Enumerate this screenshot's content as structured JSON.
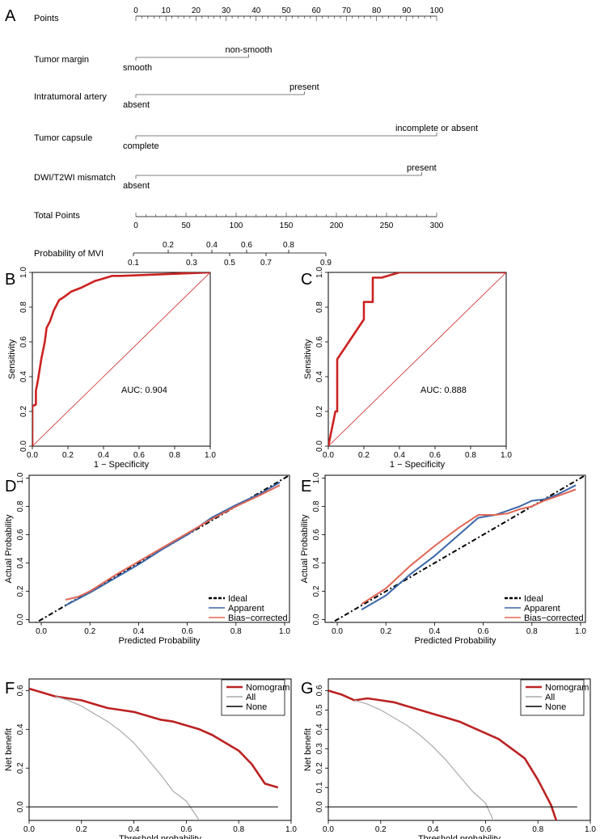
{
  "panels": {
    "A": "A",
    "B": "B",
    "C": "C",
    "D": "D",
    "E": "E",
    "F": "F",
    "G": "G"
  },
  "nomogram": {
    "rows": [
      {
        "label": "Points",
        "type": "scale",
        "min": 0,
        "max": 100,
        "labels": [
          0,
          10,
          20,
          30,
          40,
          50,
          60,
          70,
          80,
          90,
          100
        ]
      },
      {
        "label": "Tumor margin",
        "low": "smooth",
        "high": "non-smooth",
        "points": 37.5
      },
      {
        "label": "Intratumoral artery",
        "low": "absent",
        "high": "present",
        "points": 56
      },
      {
        "label": "Tumor capsule",
        "low": "complete",
        "high": "incomplete or absent",
        "points": 100
      },
      {
        "label": "DWI/T2WI mismatch",
        "low": "absent",
        "high": "present",
        "points": 95
      },
      {
        "label": "Total Points",
        "type": "scale",
        "min": 0,
        "max": 300,
        "labels": [
          0,
          50,
          100,
          150,
          200,
          250,
          300
        ]
      },
      {
        "label": "Probability of MVI",
        "type": "prob",
        "above": [
          "0.2",
          "0.4",
          "0.6",
          "0.8"
        ],
        "below": [
          "0.1",
          "0.3",
          "0.5",
          "0.7",
          "0.9"
        ]
      }
    ]
  },
  "chart_data": [
    {
      "panel": "B",
      "type": "line",
      "title": "",
      "xlabel": "1 − Specificity",
      "ylabel": "Sensitivity",
      "xlim": [
        0,
        1
      ],
      "ylim": [
        0,
        1
      ],
      "xticks": [
        "0.0",
        "0.2",
        "0.4",
        "0.6",
        "0.8",
        "1.0"
      ],
      "yticks": [
        "0.0",
        "0.2",
        "0.4",
        "0.6",
        "0.8",
        "1.0"
      ],
      "annotation": "AUC: 0.904",
      "series": [
        {
          "name": "ROC",
          "color": "#cc2222",
          "x": [
            0,
            0,
            0.02,
            0.02,
            0.03,
            0.05,
            0.07,
            0.08,
            0.1,
            0.12,
            0.15,
            0.18,
            0.22,
            0.27,
            0.35,
            0.45,
            0.5,
            1.0
          ],
          "y": [
            0,
            0.23,
            0.24,
            0.32,
            0.37,
            0.5,
            0.6,
            0.68,
            0.72,
            0.78,
            0.84,
            0.86,
            0.89,
            0.91,
            0.95,
            0.98,
            0.98,
            1.0
          ]
        },
        {
          "name": "diagonal",
          "color": "#cc2222",
          "x": [
            0,
            1
          ],
          "y": [
            0,
            1
          ]
        }
      ]
    },
    {
      "panel": "C",
      "type": "line",
      "title": "",
      "xlabel": "1 − Specificity",
      "ylabel": "Sensitivity",
      "xlim": [
        0,
        1
      ],
      "ylim": [
        0,
        1
      ],
      "xticks": [
        "0.0",
        "0.2",
        "0.4",
        "0.6",
        "0.8",
        "1.0"
      ],
      "yticks": [
        "0.0",
        "0.2",
        "0.4",
        "0.6",
        "0.8",
        "1.0"
      ],
      "annotation": "AUC: 0.888",
      "series": [
        {
          "name": "ROC",
          "color": "#cc2222",
          "x": [
            0,
            0.04,
            0.05,
            0.05,
            0.2,
            0.2,
            0.25,
            0.25,
            0.3,
            0.4,
            1.0
          ],
          "y": [
            0,
            0.2,
            0.2,
            0.5,
            0.73,
            0.83,
            0.83,
            0.97,
            0.97,
            1.0,
            1.0
          ]
        },
        {
          "name": "diagonal",
          "color": "#cc2222",
          "x": [
            0,
            1
          ],
          "y": [
            0,
            1
          ]
        }
      ]
    },
    {
      "panel": "D",
      "type": "line",
      "title": "",
      "xlabel": "Predicted Probability",
      "ylabel": "Actual Probability",
      "xlim": [
        -0.05,
        1.02
      ],
      "ylim": [
        -0.02,
        1.02
      ],
      "xticks": [
        "0.0",
        "0.2",
        "0.4",
        "0.6",
        "0.8",
        "1.0"
      ],
      "yticks": [
        "0.0",
        "0.2",
        "0.4",
        "0.6",
        "0.8",
        "1.0"
      ],
      "legend": [
        "Ideal",
        "Apparent",
        "Bias−corrected"
      ],
      "series": [
        {
          "name": "Ideal",
          "color": "#000000",
          "dash": true,
          "x": [
            -0.05,
            1.02
          ],
          "y": [
            -0.05,
            1.02
          ]
        },
        {
          "name": "Apparent",
          "color": "#3a66a8",
          "x": [
            0.1,
            0.2,
            0.3,
            0.4,
            0.5,
            0.6,
            0.7,
            0.8,
            0.9,
            0.98
          ],
          "y": [
            0.1,
            0.19,
            0.29,
            0.39,
            0.5,
            0.6,
            0.72,
            0.81,
            0.89,
            0.97
          ]
        },
        {
          "name": "Bias−corrected",
          "color": "#e06655",
          "x": [
            0.1,
            0.15,
            0.2,
            0.3,
            0.4,
            0.5,
            0.6,
            0.7,
            0.8,
            0.9,
            0.98
          ],
          "y": [
            0.14,
            0.16,
            0.2,
            0.31,
            0.41,
            0.51,
            0.61,
            0.71,
            0.8,
            0.88,
            0.95
          ]
        }
      ]
    },
    {
      "panel": "E",
      "type": "line",
      "title": "",
      "xlabel": "Predicted Probability",
      "ylabel": "Actual Probability",
      "xlim": [
        -0.05,
        1.02
      ],
      "ylim": [
        -0.02,
        1.02
      ],
      "xticks": [
        "0.0",
        "0.2",
        "0.4",
        "0.6",
        "0.8",
        "1.0"
      ],
      "yticks": [
        "0.0",
        "0.2",
        "0.4",
        "0.6",
        "0.8",
        "1.0"
      ],
      "legend": [
        "Ideal",
        "Apparent",
        "Bias−corrected"
      ],
      "series": [
        {
          "name": "Ideal",
          "color": "#000000",
          "dash": true,
          "x": [
            -0.05,
            1.02
          ],
          "y": [
            -0.05,
            1.02
          ]
        },
        {
          "name": "Apparent",
          "color": "#3a66a8",
          "x": [
            0.1,
            0.2,
            0.3,
            0.4,
            0.5,
            0.58,
            0.65,
            0.7,
            0.75,
            0.8,
            0.85,
            0.9,
            0.98
          ],
          "y": [
            0.07,
            0.17,
            0.32,
            0.45,
            0.6,
            0.72,
            0.74,
            0.77,
            0.8,
            0.84,
            0.85,
            0.88,
            0.95
          ]
        },
        {
          "name": "Bias−corrected",
          "color": "#e06655",
          "x": [
            0.1,
            0.2,
            0.3,
            0.4,
            0.5,
            0.58,
            0.65,
            0.7,
            0.75,
            0.8,
            0.85,
            0.9,
            0.98
          ],
          "y": [
            0.11,
            0.22,
            0.38,
            0.52,
            0.65,
            0.74,
            0.74,
            0.75,
            0.78,
            0.8,
            0.84,
            0.87,
            0.92
          ]
        }
      ]
    },
    {
      "panel": "F",
      "type": "line",
      "title": "",
      "xlabel": "Threshold probability",
      "ylabel": "Net benefit",
      "xlim": [
        0,
        1
      ],
      "ylim": [
        -0.07,
        0.66
      ],
      "xticks": [
        "0.0",
        "0.2",
        "0.4",
        "0.6",
        "0.8",
        "1.0"
      ],
      "yticks": [
        "0.0",
        "0.2",
        "0.4",
        "0.6"
      ],
      "legend": [
        "Nomogram",
        "All",
        "None"
      ],
      "series": [
        {
          "name": "Nomogram",
          "color": "#bb2222",
          "x": [
            0,
            0.05,
            0.1,
            0.15,
            0.2,
            0.25,
            0.3,
            0.35,
            0.4,
            0.45,
            0.5,
            0.55,
            0.6,
            0.65,
            0.7,
            0.75,
            0.8,
            0.85,
            0.9,
            0.95
          ],
          "y": [
            0.61,
            0.59,
            0.57,
            0.56,
            0.55,
            0.53,
            0.51,
            0.5,
            0.49,
            0.47,
            0.45,
            0.44,
            0.42,
            0.4,
            0.37,
            0.33,
            0.29,
            0.22,
            0.12,
            0.1
          ]
        },
        {
          "name": "All",
          "color": "#aaaaaa",
          "x": [
            0.1,
            0.15,
            0.2,
            0.25,
            0.3,
            0.35,
            0.4,
            0.45,
            0.5,
            0.55,
            0.6,
            0.65
          ],
          "y": [
            0.57,
            0.55,
            0.52,
            0.48,
            0.44,
            0.39,
            0.33,
            0.25,
            0.17,
            0.08,
            0.03,
            -0.07
          ]
        },
        {
          "name": "None",
          "color": "#000000",
          "x": [
            0,
            0.95
          ],
          "y": [
            0,
            0
          ]
        }
      ]
    },
    {
      "panel": "G",
      "type": "line",
      "title": "",
      "xlabel": "Threshold probability",
      "ylabel": "Net benefit",
      "xlim": [
        0,
        1
      ],
      "ylim": [
        -0.07,
        0.66
      ],
      "xticks": [
        "0.0",
        "0.2",
        "0.4",
        "0.6",
        "0.8",
        "1.0"
      ],
      "yticks": [
        "0.0",
        "0.1",
        "0.2",
        "0.3",
        "0.4",
        "0.5",
        "0.6"
      ],
      "legend": [
        "Nomogram",
        "All",
        "None"
      ],
      "series": [
        {
          "name": "Nomogram",
          "color": "#bb2222",
          "x": [
            0,
            0.05,
            0.1,
            0.15,
            0.2,
            0.25,
            0.3,
            0.35,
            0.4,
            0.45,
            0.5,
            0.55,
            0.6,
            0.65,
            0.7,
            0.75,
            0.8,
            0.85,
            0.87
          ],
          "y": [
            0.6,
            0.58,
            0.55,
            0.56,
            0.55,
            0.54,
            0.52,
            0.5,
            0.48,
            0.46,
            0.44,
            0.41,
            0.38,
            0.35,
            0.3,
            0.25,
            0.14,
            0.01,
            -0.07
          ]
        },
        {
          "name": "All",
          "color": "#aaaaaa",
          "x": [
            0.1,
            0.15,
            0.2,
            0.25,
            0.3,
            0.35,
            0.4,
            0.45,
            0.5,
            0.55,
            0.6,
            0.63
          ],
          "y": [
            0.55,
            0.53,
            0.5,
            0.46,
            0.42,
            0.37,
            0.31,
            0.24,
            0.16,
            0.08,
            0.02,
            -0.07
          ]
        },
        {
          "name": "None",
          "color": "#000000",
          "x": [
            0,
            0.95
          ],
          "y": [
            0,
            0
          ]
        }
      ]
    }
  ]
}
